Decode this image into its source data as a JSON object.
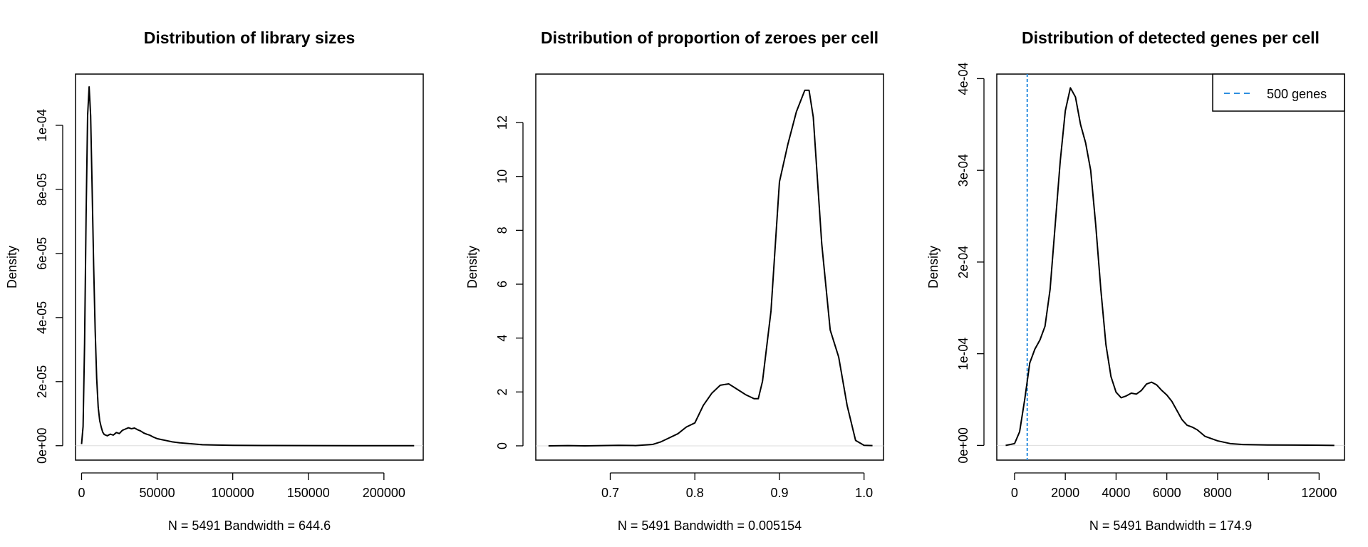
{
  "chart_data": [
    {
      "type": "line",
      "title": "Distribution of library sizes",
      "xlabel": "N = 5491   Bandwidth = 644.6",
      "ylabel": "Density",
      "xlim": [
        -4000,
        226000
      ],
      "ylim": [
        -4.5e-06,
        0.000116
      ],
      "xticks": [
        0,
        50000,
        100000,
        150000,
        200000
      ],
      "xtick_labels": [
        "0",
        "50000",
        "100000",
        "150000",
        "200000"
      ],
      "yticks": [
        0,
        2e-05,
        4e-05,
        6e-05,
        8e-05,
        0.0001
      ],
      "ytick_labels": [
        "0e+00",
        "2e-05",
        "4e-05",
        "6e-05",
        "8e-05",
        "1e-04"
      ],
      "zero_line": true,
      "series": [
        {
          "name": "density",
          "x": [
            0,
            1000,
            2000,
            3000,
            4000,
            5000,
            6000,
            7000,
            8000,
            9000,
            10000,
            11000,
            12000,
            13000,
            14000,
            15000,
            17000,
            19000,
            21000,
            23000,
            25000,
            27000,
            29000,
            31000,
            33000,
            35000,
            37000,
            39000,
            41000,
            43000,
            45000,
            47000,
            50000,
            53000,
            56000,
            60000,
            65000,
            70000,
            75000,
            80000,
            90000,
            100000,
            120000,
            150000,
            180000,
            200000,
            220000
          ],
          "y": [
            5e-07,
            6e-06,
            3.2e-05,
            7.2e-05,
            0.000103,
            0.000112,
            0.000103,
            8e-05,
            5.6e-05,
            3.6e-05,
            2.1e-05,
            1.2e-05,
            7.8e-06,
            5.8e-06,
            4.2e-06,
            3.5e-06,
            3.1e-06,
            3.6e-06,
            3.3e-06,
            4.1e-06,
            3.8e-06,
            4.8e-06,
            5.2e-06,
            5.6e-06,
            5.3e-06,
            5.5e-06,
            5e-06,
            4.6e-06,
            4e-06,
            3.6e-06,
            3.3e-06,
            2.8e-06,
            2.2e-06,
            1.9e-06,
            1.6e-06,
            1.2e-06,
            9e-07,
            7e-07,
            5e-07,
            3e-07,
            2e-07,
            1e-07,
            5e-08,
            2e-08,
            1e-08,
            1e-08,
            5e-09
          ],
          "color": "#000000"
        }
      ]
    },
    {
      "type": "line",
      "title": "Distribution of proportion of zeroes per cell",
      "xlabel": "N = 5491   Bandwidth = 0.005154",
      "ylabel": "Density",
      "xlim": [
        0.612,
        1.023
      ],
      "ylim": [
        -0.53,
        13.8
      ],
      "xticks": [
        0.7,
        0.8,
        0.9,
        1.0
      ],
      "xtick_labels": [
        "0.7",
        "0.8",
        "0.9",
        "1.0"
      ],
      "yticks": [
        0,
        2,
        4,
        6,
        8,
        10,
        12
      ],
      "ytick_labels": [
        "0",
        "2",
        "4",
        "6",
        "8",
        "10",
        "12"
      ],
      "zero_line": true,
      "series": [
        {
          "name": "density",
          "x": [
            0.627,
            0.65,
            0.67,
            0.69,
            0.71,
            0.73,
            0.75,
            0.76,
            0.77,
            0.78,
            0.79,
            0.8,
            0.81,
            0.82,
            0.83,
            0.84,
            0.85,
            0.86,
            0.87,
            0.875,
            0.88,
            0.89,
            0.9,
            0.91,
            0.92,
            0.93,
            0.935,
            0.94,
            0.95,
            0.96,
            0.97,
            0.98,
            0.99,
            1.0,
            1.01
          ],
          "y": [
            0,
            0.01,
            0,
            0.01,
            0.02,
            0.01,
            0.05,
            0.15,
            0.3,
            0.45,
            0.7,
            0.85,
            1.5,
            1.95,
            2.25,
            2.3,
            2.1,
            1.9,
            1.75,
            1.75,
            2.4,
            5,
            9.8,
            11.2,
            12.4,
            13.2,
            13.2,
            12.2,
            7.5,
            4.3,
            3.3,
            1.5,
            0.2,
            0.02,
            0.01
          ],
          "color": "#000000"
        }
      ]
    },
    {
      "type": "line",
      "title": "Distribution of detected genes per cell",
      "xlabel": "N = 5491   Bandwidth = 174.9",
      "ylabel": "Density",
      "xlim": [
        -700,
        13000
      ],
      "ylim": [
        -1.6e-05,
        0.000405
      ],
      "xticks": [
        0,
        2000,
        4000,
        6000,
        8000,
        12000
      ],
      "xtick_labels": [
        "0",
        "2000",
        "4000",
        "6000",
        "8000",
        "12000"
      ],
      "extra_xtick": 10000,
      "yticks": [
        0,
        0.0001,
        0.0002,
        0.0003,
        0.0004
      ],
      "ytick_labels": [
        "0e+00",
        "1e-04",
        "2e-04",
        "3e-04",
        "4e-04"
      ],
      "zero_line": true,
      "vline": {
        "x": 500,
        "color": "#2E8FE0"
      },
      "legend": {
        "position": "top-right",
        "entries": [
          {
            "label": "500 genes",
            "color": "#2E8FE0",
            "style": "dashed"
          }
        ]
      },
      "series": [
        {
          "name": "density",
          "x": [
            -350,
            0,
            200,
            400,
            600,
            800,
            1000,
            1200,
            1400,
            1600,
            1800,
            2000,
            2200,
            2400,
            2600,
            2800,
            3000,
            3200,
            3400,
            3600,
            3800,
            4000,
            4200,
            4400,
            4600,
            4800,
            5000,
            5200,
            5400,
            5600,
            5800,
            6000,
            6200,
            6400,
            6600,
            6800,
            7000,
            7200,
            7500,
            8000,
            8500,
            9000,
            10000,
            11000,
            12000,
            12600
          ],
          "y": [
            0,
            2e-06,
            1.5e-05,
            5e-05,
            9e-05,
            0.000105,
            0.000115,
            0.00013,
            0.00017,
            0.00024,
            0.00031,
            0.000365,
            0.00039,
            0.00038,
            0.00035,
            0.00033,
            0.0003,
            0.00024,
            0.00017,
            0.00011,
            7.5e-05,
            5.8e-05,
            5.2e-05,
            5.4e-05,
            5.7e-05,
            5.6e-05,
            6e-05,
            6.7e-05,
            6.9e-05,
            6.6e-05,
            6e-05,
            5.5e-05,
            4.8e-05,
            3.8e-05,
            2.8e-05,
            2.2e-05,
            2e-05,
            1.7e-05,
            1e-05,
            5e-06,
            2e-06,
            1e-06,
            5e-07,
            4e-07,
            2e-07,
            0
          ]
        }
      ]
    }
  ]
}
